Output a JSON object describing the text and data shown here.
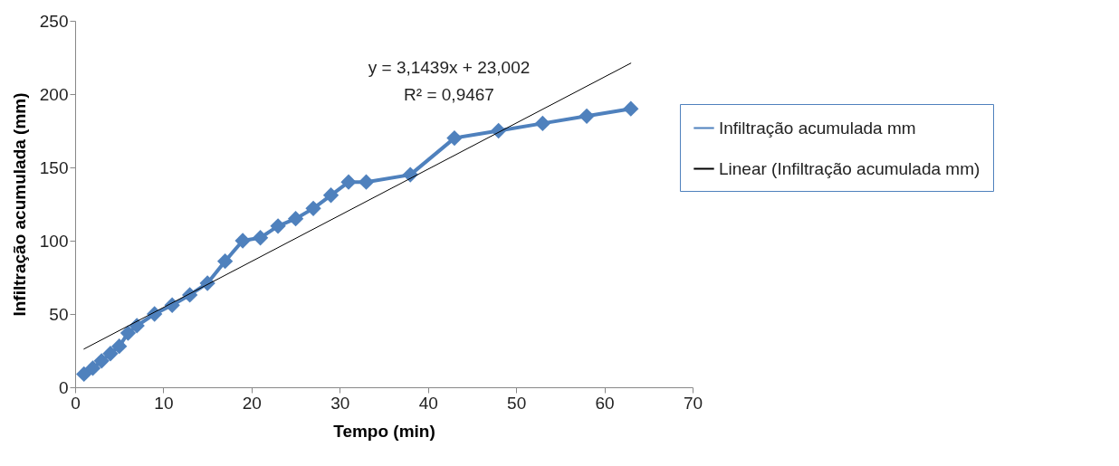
{
  "chart_data": {
    "type": "line",
    "xlabel": "Tempo (min)",
    "ylabel": "Infiltração acumulada (mm)",
    "xlim": [
      0,
      70
    ],
    "xticks": [
      0,
      10,
      20,
      30,
      40,
      50,
      60,
      70
    ],
    "ylim": [
      0,
      250
    ],
    "yticks": [
      0,
      50,
      100,
      150,
      200,
      250
    ],
    "legend": "right",
    "marker": "diamond",
    "series": [
      {
        "name": "Infiltração acumulada mm",
        "color": "#4f81bd",
        "x": [
          1,
          2,
          3,
          4,
          5,
          6,
          7,
          9,
          11,
          13,
          15,
          17,
          19,
          21,
          23,
          25,
          27,
          29,
          31,
          33,
          38,
          43,
          48,
          53,
          58,
          63
        ],
        "values": [
          9,
          13,
          18,
          23,
          28,
          37,
          42,
          50,
          56,
          63,
          71,
          86,
          100,
          102,
          110,
          115,
          122,
          131,
          140,
          140,
          145,
          170,
          175,
          180,
          185,
          190
        ]
      },
      {
        "name": "Linear (Infiltração acumulada mm)",
        "color": "#000000",
        "type": "line",
        "marker": "none",
        "x": [
          1,
          63
        ],
        "values": [
          26.1,
          221.1
        ]
      }
    ],
    "annotations": [
      "y = 3,1439x + 23,002",
      "R² = 0,9467"
    ]
  }
}
